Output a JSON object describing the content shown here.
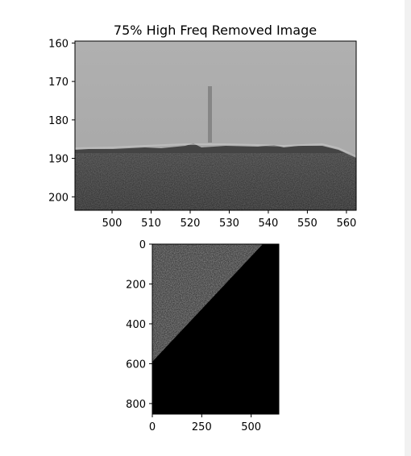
{
  "chart_data": [
    {
      "type": "heatmap",
      "title": "75% High Freq Removed Image",
      "xlabel": "",
      "ylabel": "",
      "xlim": [
        490.5,
        562.5
      ],
      "ylim": [
        203.5,
        159.5
      ],
      "x_ticks": [
        500,
        510,
        520,
        530,
        540,
        550,
        560
      ],
      "y_ticks": [
        160,
        170,
        180,
        190,
        200
      ],
      "colormap": "gray",
      "content": "grayscale low-pass filtered patch: light sky region above a dark ground region, boundary near y=188, faint vertical streak near x=525 from y=172 to y=185"
    },
    {
      "type": "heatmap",
      "title": "",
      "xlabel": "",
      "ylabel": "",
      "xlim": [
        0,
        640
      ],
      "ylim": [
        853,
        0
      ],
      "x_ticks": [
        0,
        250,
        500
      ],
      "y_ticks": [
        0,
        200,
        400,
        600,
        800
      ],
      "colormap": "gray",
      "content": "noisy dark-gray upper-left triangle bounded by a diagonal from (0,590) to (560,0); remainder black"
    }
  ],
  "colors": {
    "sky": "#a9a9a9",
    "ground": "#3c3c3c",
    "noise_region": "#4a4a4a",
    "black": "#000000",
    "scrollbar": "#f1f1f1"
  }
}
